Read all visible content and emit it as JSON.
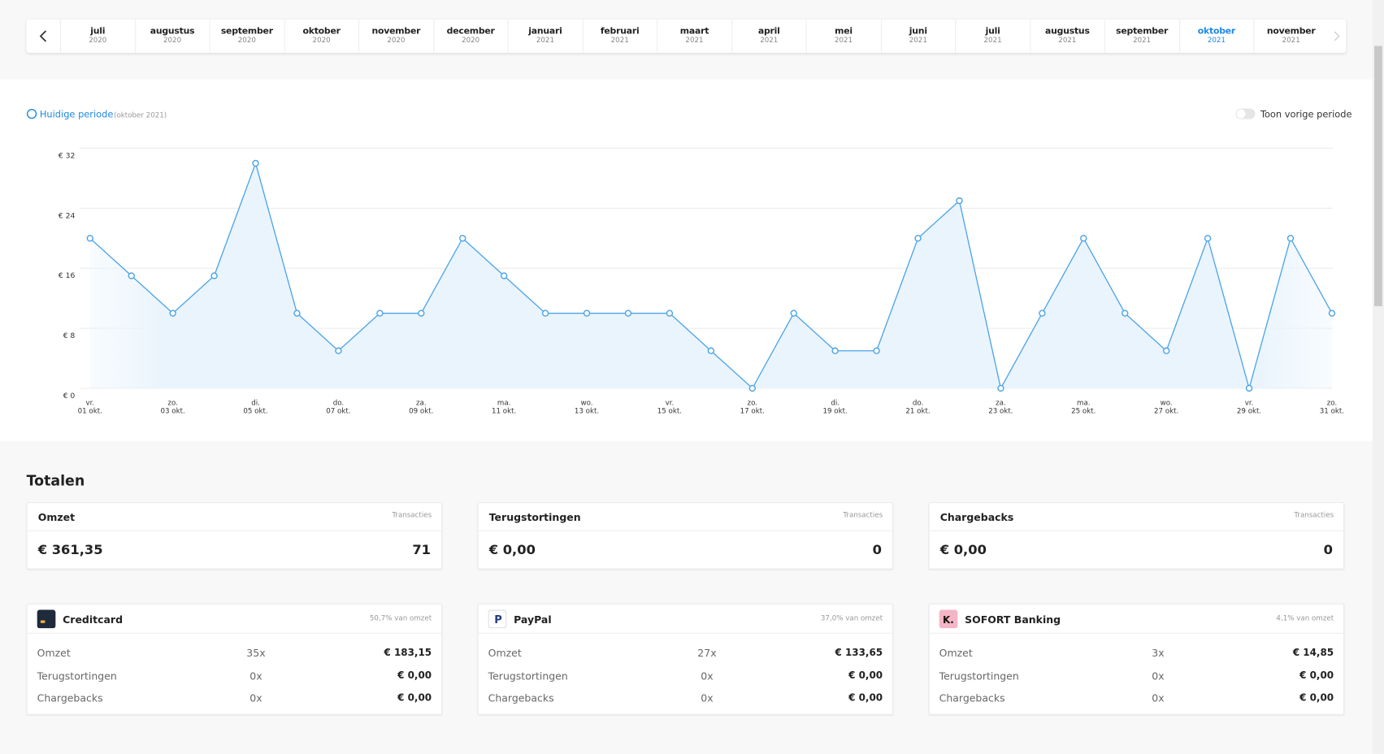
{
  "month_tabs": [
    {
      "month": "juli",
      "year": "2020"
    },
    {
      "month": "augustus",
      "year": "2020"
    },
    {
      "month": "september",
      "year": "2020"
    },
    {
      "month": "oktober",
      "year": "2020"
    },
    {
      "month": "november",
      "year": "2020"
    },
    {
      "month": "december",
      "year": "2020"
    },
    {
      "month": "januari",
      "year": "2021"
    },
    {
      "month": "februari",
      "year": "2021"
    },
    {
      "month": "maart",
      "year": "2021"
    },
    {
      "month": "april",
      "year": "2021"
    },
    {
      "month": "mei",
      "year": "2021"
    },
    {
      "month": "juni",
      "year": "2021"
    },
    {
      "month": "juli",
      "year": "2021"
    },
    {
      "month": "augustus",
      "year": "2021"
    },
    {
      "month": "september",
      "year": "2021"
    },
    {
      "month": "oktober",
      "year": "2021",
      "active": true
    },
    {
      "month": "november",
      "year": "2021"
    }
  ],
  "chart_data": {
    "type": "line",
    "period_label": "(oktober 2021)",
    "toggle_label": "Toon vorige periode",
    "categories": [
      "01 okt.",
      null,
      "03 okt.",
      null,
      "05 okt.",
      null,
      "07 okt.",
      null,
      "09 okt.",
      null,
      "11 okt.",
      null,
      "13 okt.",
      null,
      "15 okt.",
      null,
      "17 okt.",
      null,
      "19 okt.",
      null,
      "21 okt.",
      null,
      "23 okt.",
      null,
      "25 okt.",
      null,
      "27 okt.",
      null,
      "29 okt.",
      null,
      "31 okt."
    ],
    "weekdays": [
      "vr.",
      null,
      "zo.",
      null,
      "di.",
      null,
      "do.",
      null,
      "za.",
      null,
      "ma.",
      null,
      "wo.",
      null,
      "vr.",
      null,
      "zo.",
      null,
      "di.",
      null,
      "do.",
      null,
      "za.",
      null,
      "ma.",
      null,
      "wo.",
      null,
      "vr.",
      null,
      "zo."
    ],
    "series": [
      {
        "name": "Huidige periode",
        "color": "#4aa3e8",
        "values": [
          20,
          15,
          10,
          15,
          30,
          10,
          5,
          10,
          10,
          20,
          15,
          10,
          10,
          10,
          10,
          5,
          0,
          10,
          5,
          5,
          20,
          25,
          0,
          10,
          20,
          10,
          5,
          20,
          0,
          20,
          10
        ]
      }
    ],
    "ylim": [
      0,
      32
    ],
    "yticks": [
      {
        "value": 0,
        "label": "€ 0"
      },
      {
        "value": 8,
        "label": "€ 8"
      },
      {
        "value": 16,
        "label": "€ 16"
      },
      {
        "value": 24,
        "label": "€ 24"
      },
      {
        "value": 32,
        "label": "€ 32"
      }
    ],
    "grid": true
  },
  "totals": {
    "title": "Totalen",
    "cards": [
      {
        "label": "Omzet",
        "count_label": "Transacties",
        "amount": "€ 361,35",
        "count": "71"
      },
      {
        "label": "Terugstortingen",
        "count_label": "Transacties",
        "amount": "€ 0,00",
        "count": "0"
      },
      {
        "label": "Chargebacks",
        "count_label": "Transacties",
        "amount": "€ 0,00",
        "count": "0"
      }
    ]
  },
  "methods": [
    {
      "name": "Creditcard",
      "share": "50,7% van omzet",
      "rows": [
        {
          "label": "Omzet",
          "count": "35x",
          "amount": "€ 183,15"
        },
        {
          "label": "Terugstortingen",
          "count": "0x",
          "amount": "€ 0,00"
        },
        {
          "label": "Chargebacks",
          "count": "0x",
          "amount": "€ 0,00"
        }
      ]
    },
    {
      "name": "PayPal",
      "share": "37,0% van omzet",
      "rows": [
        {
          "label": "Omzet",
          "count": "27x",
          "amount": "€ 133,65"
        },
        {
          "label": "Terugstortingen",
          "count": "0x",
          "amount": "€ 0,00"
        },
        {
          "label": "Chargebacks",
          "count": "0x",
          "amount": "€ 0,00"
        }
      ]
    },
    {
      "name": "SOFORT Banking",
      "icon": "K.",
      "share": "4,1% van omzet",
      "rows": [
        {
          "label": "Omzet",
          "count": "3x",
          "amount": "€ 14,85"
        },
        {
          "label": "Terugstortingen",
          "count": "0x",
          "amount": "€ 0,00"
        },
        {
          "label": "Chargebacks",
          "count": "0x",
          "amount": "€ 0,00"
        }
      ]
    }
  ]
}
